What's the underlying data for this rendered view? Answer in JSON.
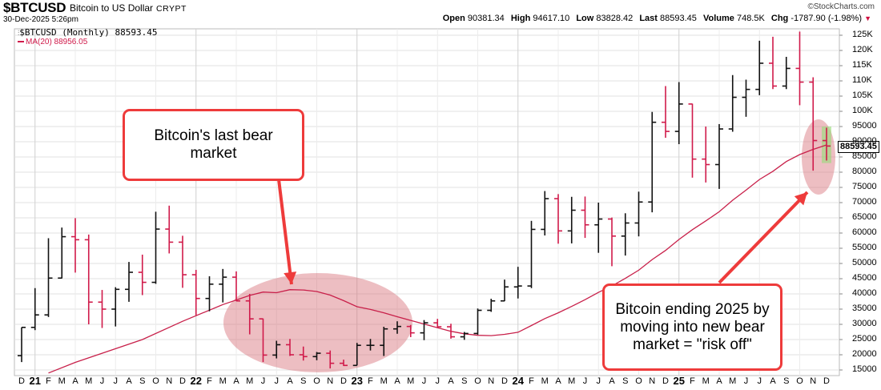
{
  "header": {
    "symbol": "$BTCUSD",
    "name": "Bitcoin to US Dollar",
    "exchange": "CRYPT",
    "date": "30-Dec-2025 5:26pm",
    "copyright": "©StockCharts.com",
    "stats": {
      "open_label": "Open",
      "open": "90381.34",
      "high_label": "High",
      "high": "94617.10",
      "low_label": "Low",
      "low": "83828.42",
      "last_label": "Last",
      "last": "88593.45",
      "volume_label": "Volume",
      "volume": "748.5K",
      "chg_label": "Chg",
      "chg": "-1787.90 (-1.98%)",
      "chg_arrow": "▼"
    }
  },
  "legend": {
    "price": "$BTCUSD (Monthly) 88593.45",
    "ma": "MA(20) 88956.05"
  },
  "last_tag": "88593.45",
  "annotations": [
    {
      "text": "Bitcoin's last bear market"
    },
    {
      "text": "Bitcoin ending 2025 by moving into new bear market = \"risk off\""
    }
  ],
  "colors": {
    "up": "#111111",
    "down": "#d01a4a",
    "ma": "#c8204a",
    "callout_border": "#ee3b3b",
    "ellipse": "rgba(214,110,120,0.45)",
    "grid": "#e2e2e2",
    "current_highlight": "rgba(150,220,120,0.6)"
  },
  "chart_data": {
    "type": "ohlc",
    "title": "$BTCUSD Bitcoin to US Dollar (Monthly)",
    "xlabel": "",
    "ylabel": "",
    "ylim": [
      13000,
      127000
    ],
    "y_ticks": [
      "15000",
      "20000",
      "25000",
      "30000",
      "35000",
      "40000",
      "45000",
      "50000",
      "55000",
      "60000",
      "65000",
      "70000",
      "75000",
      "80000",
      "85000",
      "90000",
      "95000",
      "100K",
      "105K",
      "110K",
      "115K",
      "120K",
      "125K"
    ],
    "x_ticks": [
      "D",
      "21",
      "F",
      "M",
      "A",
      "M",
      "J",
      "J",
      "A",
      "S",
      "O",
      "N",
      "D",
      "22",
      "F",
      "M",
      "A",
      "M",
      "J",
      "J",
      "A",
      "S",
      "O",
      "N",
      "D",
      "23",
      "F",
      "M",
      "A",
      "M",
      "J",
      "J",
      "A",
      "S",
      "O",
      "N",
      "D",
      "24",
      "F",
      "M",
      "A",
      "M",
      "J",
      "J",
      "A",
      "S",
      "O",
      "N",
      "D",
      "25",
      "F",
      "M",
      "A",
      "M",
      "J",
      "J",
      "A",
      "S",
      "O",
      "N",
      "D"
    ],
    "year_ticks": [
      "21",
      "22",
      "23",
      "24",
      "25"
    ],
    "grid": true,
    "legend_position": "top-left",
    "months": [
      "Dec-20",
      "Jan-21",
      "Feb-21",
      "Mar-21",
      "Apr-21",
      "May-21",
      "Jun-21",
      "Jul-21",
      "Aug-21",
      "Sep-21",
      "Oct-21",
      "Nov-21",
      "Dec-21",
      "Jan-22",
      "Feb-22",
      "Mar-22",
      "Apr-22",
      "May-22",
      "Jun-22",
      "Jul-22",
      "Aug-22",
      "Sep-22",
      "Oct-22",
      "Nov-22",
      "Dec-22",
      "Jan-23",
      "Feb-23",
      "Mar-23",
      "Apr-23",
      "May-23",
      "Jun-23",
      "Jul-23",
      "Aug-23",
      "Sep-23",
      "Oct-23",
      "Nov-23",
      "Dec-23",
      "Jan-24",
      "Feb-24",
      "Mar-24",
      "Apr-24",
      "May-24",
      "Jun-24",
      "Jul-24",
      "Aug-24",
      "Sep-24",
      "Oct-24",
      "Nov-24",
      "Dec-24",
      "Jan-25",
      "Feb-25",
      "Mar-25",
      "Apr-25",
      "May-25",
      "Jun-25",
      "Jul-25",
      "Aug-25",
      "Sep-25",
      "Oct-25",
      "Nov-25",
      "Dec-25"
    ],
    "series": [
      {
        "name": "OHLC",
        "values": [
          [
            19700,
            29000,
            17600,
            29000
          ],
          [
            29000,
            41900,
            28100,
            33100
          ],
          [
            33100,
            58300,
            32400,
            45200
          ],
          [
            45200,
            61800,
            45100,
            58800
          ],
          [
            58800,
            64900,
            47000,
            57800
          ],
          [
            57800,
            59500,
            30000,
            37300
          ],
          [
            37300,
            41300,
            28800,
            35000
          ],
          [
            35000,
            42200,
            29300,
            41500
          ],
          [
            41500,
            50500,
            37400,
            47100
          ],
          [
            47100,
            52900,
            39600,
            43800
          ],
          [
            43800,
            67000,
            43300,
            61300
          ],
          [
            61300,
            69000,
            53300,
            57000
          ],
          [
            57000,
            59100,
            42000,
            46300
          ],
          [
            46300,
            47900,
            33000,
            38500
          ],
          [
            38500,
            45800,
            34300,
            43200
          ],
          [
            43200,
            48200,
            37200,
            45500
          ],
          [
            45500,
            47400,
            37600,
            37700
          ],
          [
            37700,
            40000,
            26700,
            31800
          ],
          [
            31800,
            31900,
            17600,
            19900
          ],
          [
            19900,
            24600,
            18800,
            23300
          ],
          [
            23300,
            25200,
            19600,
            20000
          ],
          [
            20000,
            22700,
            18100,
            19400
          ],
          [
            19400,
            20900,
            18200,
            20500
          ],
          [
            20500,
            21400,
            15500,
            17200
          ],
          [
            17200,
            18400,
            16300,
            16500
          ],
          [
            16500,
            23900,
            16500,
            23100
          ],
          [
            23100,
            25200,
            21400,
            23100
          ],
          [
            23100,
            29200,
            19600,
            28500
          ],
          [
            28500,
            31000,
            26900,
            29300
          ],
          [
            29300,
            29800,
            25800,
            27200
          ],
          [
            27200,
            31400,
            24800,
            30500
          ],
          [
            30500,
            31800,
            28900,
            29200
          ],
          [
            29200,
            30200,
            25300,
            25900
          ],
          [
            25900,
            27500,
            24900,
            27000
          ],
          [
            27000,
            35200,
            26600,
            34600
          ],
          [
            34600,
            38400,
            34100,
            37700
          ],
          [
            37700,
            44700,
            37600,
            42300
          ],
          [
            42300,
            48900,
            38500,
            42600
          ],
          [
            42600,
            64000,
            41900,
            61200
          ],
          [
            61200,
            73800,
            59200,
            71300
          ],
          [
            71300,
            72800,
            56500,
            60700
          ],
          [
            60700,
            71900,
            56600,
            67500
          ],
          [
            67500,
            72000,
            58400,
            62700
          ],
          [
            62700,
            70000,
            53500,
            64600
          ],
          [
            64600,
            65100,
            49100,
            59000
          ],
          [
            59000,
            66500,
            52600,
            63300
          ],
          [
            63300,
            73600,
            58900,
            70200
          ],
          [
            70200,
            99800,
            66800,
            96400
          ],
          [
            96400,
            108300,
            91300,
            93400
          ],
          [
            93400,
            109600,
            89200,
            102400
          ],
          [
            102400,
            102500,
            78200,
            84300
          ],
          [
            84300,
            95000,
            76600,
            82500
          ],
          [
            82500,
            95800,
            74500,
            94200
          ],
          [
            94200,
            111900,
            93300,
            104600
          ],
          [
            104600,
            110400,
            98200,
            107200
          ],
          [
            107200,
            123200,
            105300,
            115800
          ],
          [
            115800,
            124500,
            107300,
            108300
          ],
          [
            108300,
            117900,
            107300,
            114100
          ],
          [
            114100,
            126200,
            102000,
            109600
          ],
          [
            109600,
            111200,
            80500,
            90400
          ],
          [
            90381,
            94617,
            83828,
            88593
          ]
        ]
      },
      {
        "name": "MA(20)",
        "values": [
          null,
          null,
          null,
          null,
          null,
          null,
          null,
          null,
          null,
          null,
          null,
          null,
          null,
          null,
          null,
          null,
          null,
          null,
          null,
          40400,
          41400,
          41300,
          40800,
          39600,
          37800,
          35800,
          34900,
          33800,
          32500,
          31300,
          30100,
          28900,
          27700,
          26900,
          26400,
          26300,
          26700,
          27400,
          29600,
          31900,
          33800,
          35900,
          38100,
          40500,
          42600,
          45100,
          47800,
          51300,
          54300,
          57900,
          61100,
          64000,
          67000,
          70800,
          74100,
          77600,
          80300,
          83500,
          85800,
          87500,
          88956
        ]
      }
    ]
  }
}
